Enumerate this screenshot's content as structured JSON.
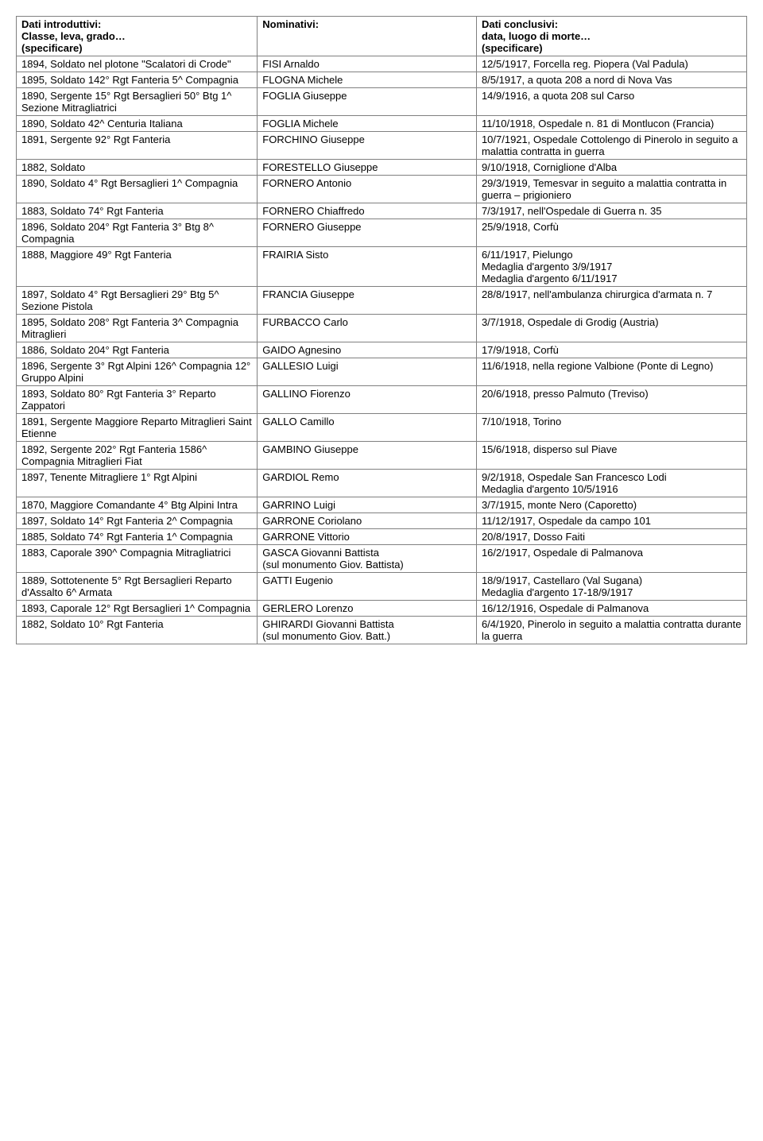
{
  "headers": {
    "col1_line1": "Dati introduttivi:",
    "col1_line2": "Classe, leva, grado…",
    "col1_line3": "(specificare)",
    "col2_line1": "Nominativi:",
    "col3_line1": "Dati conclusivi:",
    "col3_line2": "data, luogo di morte…",
    "col3_line3": "(specificare)"
  },
  "rows": [
    {
      "c1": "1894, Soldato nel plotone \"Scalatori di Crode\"",
      "c2": "FISI Arnaldo",
      "c3": "12/5/1917, Forcella reg. Piopera (Val Padula)"
    },
    {
      "c1": "1895, Soldato 142° Rgt Fanteria 5^ Compagnia",
      "c2": "FLOGNA Michele",
      "c3": "8/5/1917, a quota 208 a nord di Nova Vas"
    },
    {
      "c1": "1890, Sergente 15° Rgt Bersaglieri 50° Btg 1^ Sezione Mitragliatrici",
      "c2": "FOGLIA Giuseppe",
      "c3": "14/9/1916, a quota 208 sul Carso"
    },
    {
      "c1": "1890, Soldato 42^ Centuria Italiana",
      "c2": "FOGLIA Michele",
      "c3": "11/10/1918, Ospedale n. 81 di Montlucon (Francia)"
    },
    {
      "c1": "1891, Sergente 92° Rgt Fanteria",
      "c2": "FORCHINO Giuseppe",
      "c3": "10/7/1921, Ospedale Cottolengo di Pinerolo in seguito a malattia contratta in guerra"
    },
    {
      "c1": "1882, Soldato",
      "c2": "FORESTELLO Giuseppe",
      "c3": "9/10/1918, Corniglione d'Alba"
    },
    {
      "c1": "1890, Soldato 4° Rgt Bersaglieri 1^ Compagnia",
      "c2": "FORNERO Antonio",
      "c3": "29/3/1919, Temesvar in seguito a malattia contratta in guerra – prigioniero"
    },
    {
      "c1": "1883, Soldato 74° Rgt Fanteria",
      "c2": "FORNERO Chiaffredo",
      "c3": "7/3/1917, nell'Ospedale di Guerra n. 35"
    },
    {
      "c1": "1896, Soldato 204° Rgt Fanteria 3° Btg 8^ Compagnia",
      "c2": "FORNERO Giuseppe",
      "c3": "25/9/1918, Corfù"
    },
    {
      "c1": "1888, Maggiore 49° Rgt Fanteria",
      "c2": "FRAIRIA Sisto",
      "c3": "6/11/1917, Pielungo\nMedaglia d'argento 3/9/1917\nMedaglia d'argento 6/11/1917"
    },
    {
      "c1": "1897, Soldato 4° Rgt Bersaglieri 29° Btg 5^ Sezione Pistola",
      "c2": "FRANCIA Giuseppe",
      "c3": "28/8/1917, nell'ambulanza chirurgica d'armata n. 7"
    },
    {
      "c1": "1895, Soldato 208° Rgt Fanteria 3^ Compagnia Mitraglieri",
      "c2": "FURBACCO Carlo",
      "c3": "3/7/1918, Ospedale di Grodig (Austria)"
    },
    {
      "c1": "1886, Soldato 204° Rgt Fanteria",
      "c2": "GAIDO Agnesino",
      "c3": "17/9/1918, Corfù"
    },
    {
      "c1": "1896, Sergente 3° Rgt Alpini 126^ Compagnia 12° Gruppo Alpini",
      "c2": "GALLESIO Luigi",
      "c3": "11/6/1918, nella regione Valbione (Ponte di Legno)"
    },
    {
      "c1": "1893, Soldato 80° Rgt Fanteria 3° Reparto Zappatori",
      "c2": "GALLINO Fiorenzo",
      "c3": "20/6/1918, presso Palmuto (Treviso)"
    },
    {
      "c1": "1891, Sergente Maggiore Reparto Mitraglieri Saint Etienne",
      "c2": "GALLO Camillo",
      "c3": "7/10/1918, Torino"
    },
    {
      "c1": "1892, Sergente 202° Rgt Fanteria 1586^ Compagnia Mitraglieri Fiat",
      "c2": "GAMBINO Giuseppe",
      "c3": "15/6/1918, disperso sul Piave"
    },
    {
      "c1": "1897, Tenente Mitragliere 1° Rgt Alpini",
      "c2": "GARDIOL Remo",
      "c3": "9/2/1918, Ospedale San Francesco Lodi\nMedaglia d'argento 10/5/1916"
    },
    {
      "c1": "1870, Maggiore Comandante 4° Btg Alpini Intra",
      "c2": "GARRINO Luigi",
      "c3": "3/7/1915, monte Nero (Caporetto)"
    },
    {
      "c1": "1897, Soldato 14° Rgt Fanteria 2^ Compagnia",
      "c2": "GARRONE Coriolano",
      "c3": "11/12/1917, Ospedale da campo 101"
    },
    {
      "c1": "1885, Soldato 74° Rgt Fanteria 1^ Compagnia",
      "c2": "GARRONE Vittorio",
      "c3": "20/8/1917, Dosso Faiti"
    },
    {
      "c1": "1883, Caporale 390^ Compagnia Mitragliatrici",
      "c2": "GASCA Giovanni Battista\n(sul monumento Giov. Battista)",
      "c3": "16/2/1917, Ospedale di Palmanova"
    },
    {
      "c1": "1889, Sottotenente 5° Rgt Bersaglieri Reparto d'Assalto 6^ Armata",
      "c2": "GATTI Eugenio",
      "c3": "18/9/1917, Castellaro (Val Sugana)\nMedaglia d'argento 17-18/9/1917"
    },
    {
      "c1": "1893, Caporale 12° Rgt Bersaglieri 1^ Compagnia",
      "c2": "GERLERO Lorenzo",
      "c3": "16/12/1916, Ospedale di Palmanova"
    },
    {
      "c1": "1882, Soldato 10° Rgt Fanteria",
      "c2": "GHIRARDI Giovanni Battista\n(sul monumento Giov. Batt.)",
      "c3": "6/4/1920, Pinerolo in seguito a malattia contratta durante la guerra"
    }
  ]
}
